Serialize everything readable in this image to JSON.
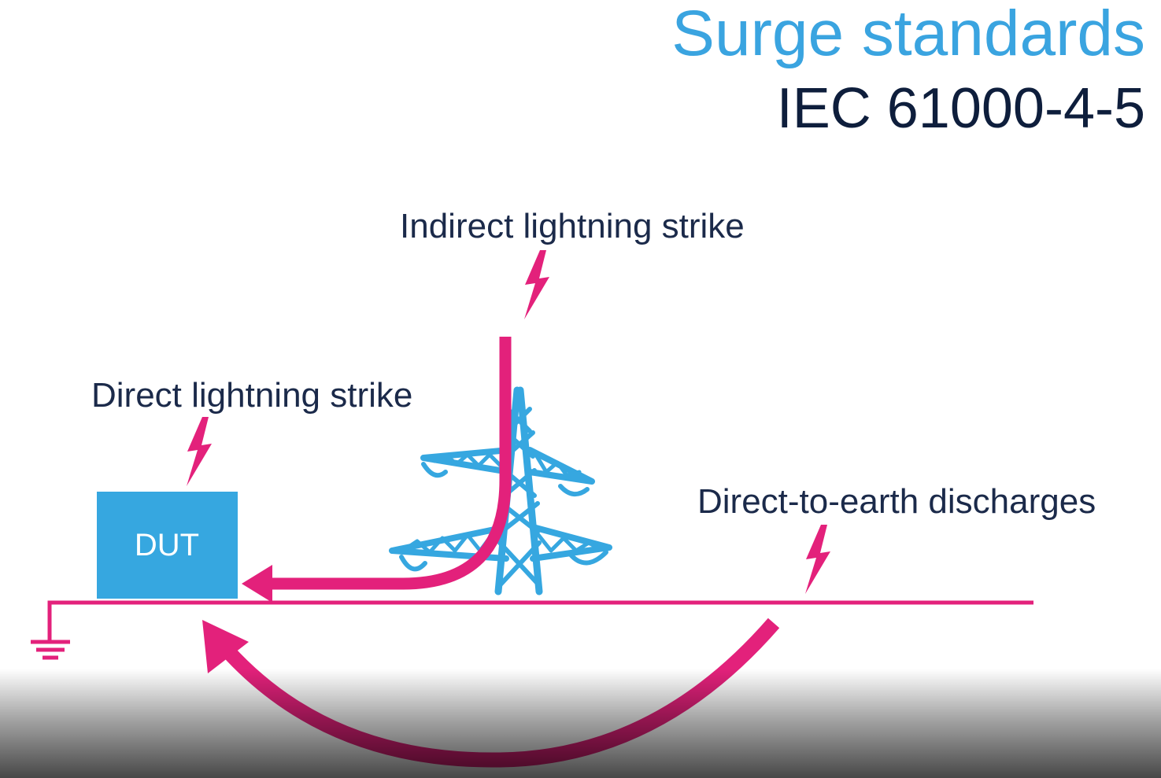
{
  "slide": {
    "title": "Surge standards",
    "subtitle": "IEC 61000-4-5",
    "colors": {
      "title": "#3aa4e0",
      "subtitle": "#0e1e3c",
      "label": "#1b2a4a",
      "accent": "#e3217b",
      "equipment": "#36a7e0",
      "box_text": "#ffffff"
    }
  },
  "diagram": {
    "labels": {
      "indirect": "Indirect lightning strike",
      "direct": "Direct lightning strike",
      "earth": "Direct-to-earth discharges"
    },
    "dut_label": "DUT",
    "icons": [
      "lightning-bolt-icon",
      "transmission-tower-icon",
      "ground-symbol-icon",
      "arrow-icon"
    ]
  }
}
